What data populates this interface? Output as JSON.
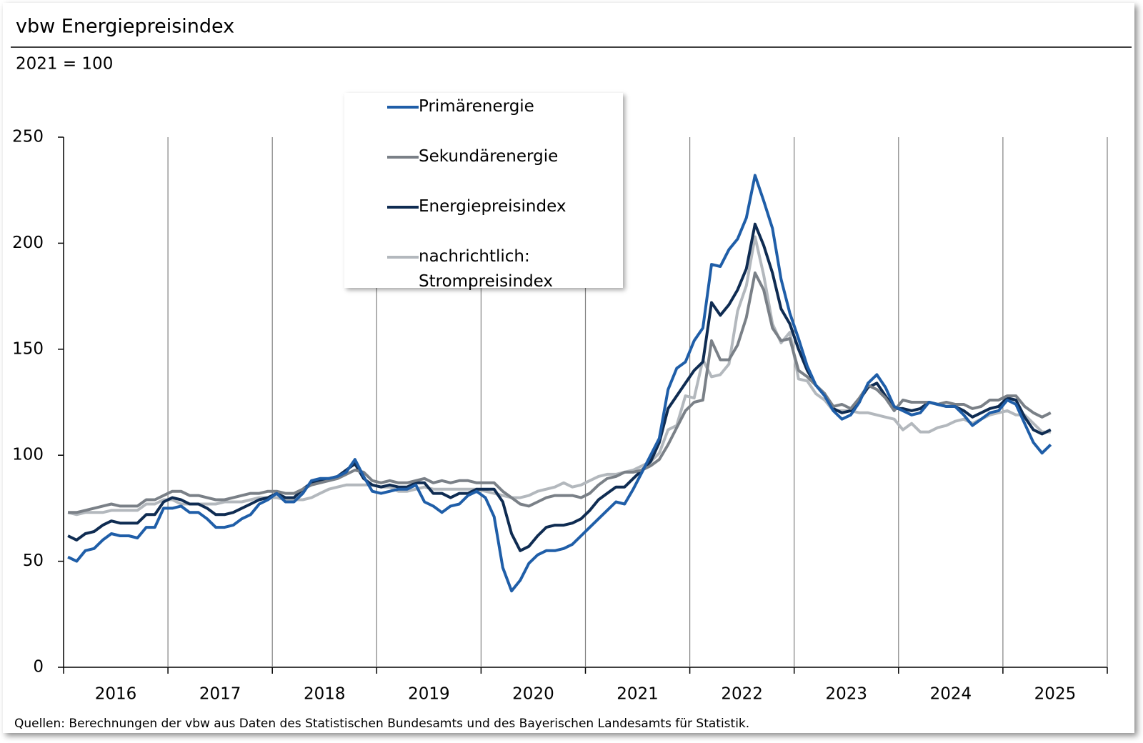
{
  "chart_data": {
    "type": "line",
    "title": "vbw Energiepreisindex",
    "subtitle": "2021 = 100",
    "source": "Quellen: Berechnungen der vbw aus Daten des Statistischen Bundesamts und des Bayerischen Landesamts für Statistik.",
    "categories": [
      "2016",
      "2017",
      "2018",
      "2019",
      "2020",
      "2021",
      "2022",
      "2023",
      "2024",
      "2025"
    ],
    "x": [
      2016.042,
      2016.125,
      2016.208,
      2016.292,
      2016.375,
      2016.458,
      2016.542,
      2016.625,
      2016.708,
      2016.792,
      2016.875,
      2016.958,
      2017.042,
      2017.125,
      2017.208,
      2017.292,
      2017.375,
      2017.458,
      2017.542,
      2017.625,
      2017.708,
      2017.792,
      2017.875,
      2017.958,
      2018.042,
      2018.125,
      2018.208,
      2018.292,
      2018.375,
      2018.458,
      2018.542,
      2018.625,
      2018.708,
      2018.792,
      2018.875,
      2018.958,
      2019.042,
      2019.125,
      2019.208,
      2019.292,
      2019.375,
      2019.458,
      2019.542,
      2019.625,
      2019.708,
      2019.792,
      2019.875,
      2019.958,
      2020.042,
      2020.125,
      2020.208,
      2020.292,
      2020.375,
      2020.458,
      2020.542,
      2020.625,
      2020.708,
      2020.792,
      2020.875,
      2020.958,
      2021.042,
      2021.125,
      2021.208,
      2021.292,
      2021.375,
      2021.458,
      2021.542,
      2021.625,
      2021.708,
      2021.792,
      2021.875,
      2021.958,
      2022.042,
      2022.125,
      2022.208,
      2022.292,
      2022.375,
      2022.458,
      2022.542,
      2022.625,
      2022.708,
      2022.792,
      2022.875,
      2022.958,
      2023.042,
      2023.125,
      2023.208,
      2023.292,
      2023.375,
      2023.458,
      2023.542,
      2023.625,
      2023.708,
      2023.792,
      2023.875,
      2023.958,
      2024.042,
      2024.125,
      2024.208,
      2024.292,
      2024.375,
      2024.458,
      2024.542,
      2024.625,
      2024.708,
      2024.792,
      2024.875,
      2024.958,
      2025.042,
      2025.125,
      2025.208,
      2025.292,
      2025.375,
      2025.458
    ],
    "series": [
      {
        "name": "Primärenergie",
        "color": "#1f5ea8",
        "values": [
          52,
          50,
          55,
          56,
          60,
          63,
          62,
          62,
          61,
          66,
          66,
          75,
          75,
          76,
          73,
          73,
          70,
          66,
          66,
          67,
          70,
          72,
          77,
          79,
          82,
          78,
          78,
          82,
          88,
          89,
          89,
          90,
          92,
          98,
          90,
          83,
          82,
          83,
          84,
          84,
          86,
          78,
          76,
          73,
          76,
          77,
          81,
          83,
          80,
          71,
          47,
          36,
          41,
          49,
          53,
          55,
          55,
          56,
          58,
          62,
          66,
          70,
          74,
          78,
          77,
          84,
          92,
          100,
          108,
          131,
          141,
          144,
          154,
          160,
          190,
          189,
          197,
          202,
          212,
          232,
          220,
          207,
          183,
          167,
          155,
          142,
          133,
          128,
          121,
          117,
          119,
          125,
          134,
          138,
          132,
          123,
          121,
          119,
          120,
          125,
          124,
          123,
          123,
          119,
          114,
          117,
          120,
          121,
          126,
          124,
          115,
          106,
          101,
          105
        ]
      },
      {
        "name": "Sekundärenergie",
        "color": "#7a8087",
        "values": [
          73,
          73,
          74,
          75,
          76,
          77,
          76,
          76,
          76,
          79,
          79,
          81,
          83,
          83,
          81,
          81,
          80,
          79,
          79,
          80,
          81,
          82,
          82,
          83,
          83,
          82,
          82,
          84,
          86,
          87,
          88,
          89,
          91,
          93,
          92,
          88,
          87,
          88,
          87,
          87,
          88,
          89,
          87,
          88,
          87,
          88,
          88,
          87,
          87,
          87,
          83,
          80,
          77,
          76,
          78,
          80,
          81,
          81,
          81,
          80,
          82,
          86,
          89,
          90,
          92,
          92,
          93,
          95,
          98,
          105,
          113,
          121,
          125,
          126,
          154,
          145,
          145,
          152,
          165,
          186,
          178,
          160,
          154,
          155,
          140,
          137,
          133,
          129,
          123,
          124,
          122,
          127,
          133,
          131,
          127,
          121,
          126,
          125,
          125,
          125,
          124,
          125,
          124,
          124,
          122,
          123,
          126,
          126,
          128,
          128,
          123,
          120,
          118,
          120
        ]
      },
      {
        "name": "Energiepreisindex",
        "color": "#0f2c52",
        "values": [
          62,
          60,
          63,
          64,
          67,
          69,
          68,
          68,
          68,
          72,
          72,
          78,
          80,
          79,
          77,
          77,
          75,
          72,
          72,
          73,
          75,
          77,
          79,
          80,
          82,
          80,
          80,
          84,
          87,
          88,
          89,
          90,
          93,
          96,
          89,
          86,
          85,
          86,
          85,
          85,
          87,
          87,
          82,
          82,
          80,
          82,
          82,
          84,
          84,
          84,
          78,
          63,
          55,
          57,
          62,
          66,
          67,
          67,
          68,
          70,
          74,
          79,
          82,
          85,
          85,
          89,
          93,
          97,
          106,
          122,
          128,
          134,
          140,
          144,
          172,
          166,
          171,
          178,
          188,
          209,
          199,
          186,
          169,
          162,
          150,
          140,
          133,
          129,
          122,
          120,
          121,
          126,
          132,
          134,
          128,
          122,
          122,
          121,
          122,
          125,
          124,
          123,
          123,
          121,
          118,
          120,
          122,
          123,
          127,
          126,
          118,
          112,
          110,
          112
        ]
      },
      {
        "name": "nachrichtlich: Strompreisindex",
        "color": "#b3b8bd",
        "values": [
          73,
          72,
          73,
          73,
          73,
          74,
          74,
          74,
          74,
          77,
          77,
          79,
          79,
          77,
          77,
          77,
          77,
          77,
          78,
          78,
          78,
          79,
          80,
          80,
          80,
          79,
          79,
          79,
          80,
          82,
          84,
          85,
          86,
          86,
          86,
          86,
          85,
          85,
          83,
          83,
          84,
          85,
          84,
          84,
          84,
          84,
          84,
          84,
          83,
          82,
          81,
          80,
          80,
          81,
          83,
          84,
          85,
          87,
          85,
          86,
          88,
          90,
          91,
          91,
          92,
          93,
          95,
          97,
          101,
          112,
          114,
          128,
          127,
          145,
          137,
          138,
          143,
          168,
          180,
          203,
          185,
          162,
          153,
          158,
          136,
          135,
          129,
          126,
          121,
          121,
          121,
          120,
          120,
          119,
          118,
          117,
          112,
          115,
          111,
          111,
          113,
          114,
          116,
          117,
          115,
          117,
          119,
          120,
          121,
          119,
          119,
          115,
          111,
          111
        ]
      }
    ],
    "xlim": [
      2016,
      2026
    ],
    "xticks": [
      2016,
      2017,
      2018,
      2019,
      2020,
      2021,
      2022,
      2023,
      2024,
      2025,
      2026
    ],
    "ylim": [
      0,
      250
    ],
    "yticks": [
      0,
      50,
      100,
      150,
      200,
      250
    ],
    "grid": true,
    "legend": "top-center"
  }
}
